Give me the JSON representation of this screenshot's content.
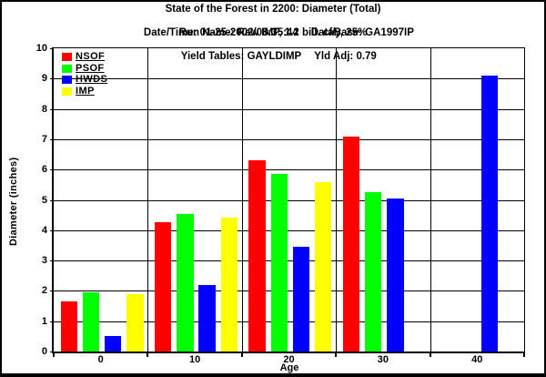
{
  "header": {
    "line1": "State of the Forest in 2200: Diameter (Total)",
    "line2a": "Date/Time: 01-25-2002/08:35:44",
    "line2b": "DataBase: GA1997IP",
    "line3": "Run Name: Raw IMP, 1.2 bill. cf/y, 25%",
    "line4a": "Yield Tables: GAYLDIMP",
    "line4b": "Yld Adj: 0.79"
  },
  "chart_data": {
    "type": "bar",
    "title": "State of the Forest in 2200: Diameter (Total)",
    "xlabel": "Age",
    "ylabel": "Diameter (inches)",
    "ylim": [
      0,
      10
    ],
    "ytick_step": 1,
    "grid": true,
    "legend_position": "top-left-inside",
    "categories": [
      "0",
      "10",
      "20",
      "30",
      "40"
    ],
    "series": [
      {
        "name": "NSOF",
        "color": "#ff0000",
        "values": [
          1.65,
          4.25,
          6.3,
          7.1,
          null
        ]
      },
      {
        "name": "PSOF",
        "color": "#00ff00",
        "values": [
          1.95,
          4.55,
          5.85,
          5.25,
          null
        ]
      },
      {
        "name": "HWDS",
        "color": "#0000ff",
        "values": [
          0.5,
          2.2,
          3.45,
          5.05,
          9.1
        ]
      },
      {
        "name": "IMP",
        "color": "#ffff00",
        "values": [
          1.9,
          4.4,
          5.6,
          null,
          null
        ]
      }
    ]
  },
  "colors": {
    "background": "#ffffff",
    "frame_border": "#000000",
    "text": "#000000",
    "gridline": "#000000"
  }
}
